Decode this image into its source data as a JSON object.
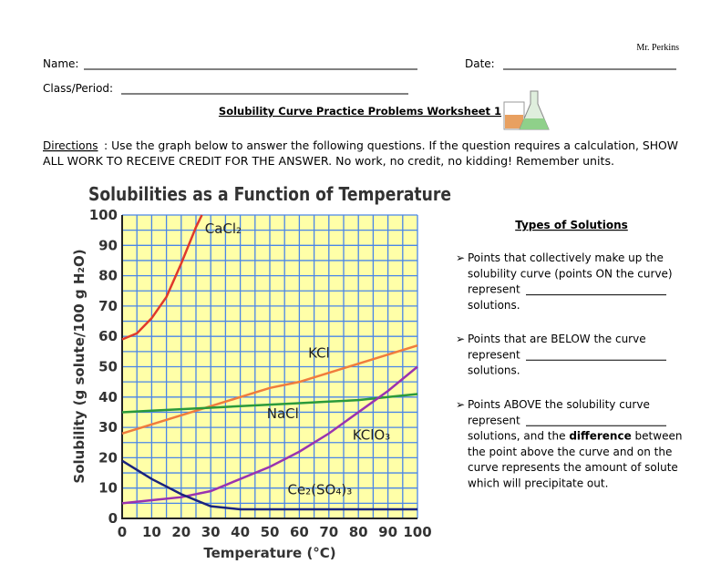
{
  "header": {
    "author": "Mr. Perkins",
    "name_label": "Name:",
    "date_label": "Date:",
    "class_label": "Class/Period:"
  },
  "title": "Solubility Curve Practice Problems Worksheet 1",
  "directions": {
    "label": "Directions",
    "lines": [
      ": Use the graph below to answer the following questions.  If the question requires a calculation, SHOW",
      "ALL WORK TO RECEIVE CREDIT FOR THE ANSWER.  No work, no credit, no kidding!  Remember units."
    ]
  },
  "chart_data": {
    "type": "line",
    "title": "Solubilities as a Function of Temperature",
    "x_label": "Temperature (°C)",
    "y_label": "Solubility (g solute/100 g H₂O)",
    "xlim": [
      0,
      100
    ],
    "ylim": [
      0,
      100
    ],
    "xticks": [
      0,
      10,
      20,
      30,
      40,
      50,
      60,
      70,
      80,
      90,
      100
    ],
    "yticks": [
      0,
      10,
      20,
      30,
      40,
      50,
      60,
      70,
      80,
      90,
      100
    ],
    "grid": true,
    "background": "#ffffa8",
    "grid_color": "#4a86e8",
    "series": [
      {
        "name": "CaCl₂",
        "color": "#e0392b",
        "x": [
          0,
          5,
          10,
          15,
          20,
          25,
          27
        ],
        "values": [
          59,
          61,
          66,
          73,
          84,
          96,
          100
        ]
      },
      {
        "name": "KCl",
        "color": "#f07c3c",
        "x": [
          0,
          10,
          20,
          30,
          40,
          50,
          60,
          70,
          80,
          90,
          100
        ],
        "values": [
          28,
          31,
          34,
          37,
          40,
          43,
          45,
          48,
          51,
          54,
          57
        ]
      },
      {
        "name": "NaCl",
        "color": "#2a9a3a",
        "x": [
          0,
          10,
          20,
          30,
          40,
          50,
          60,
          70,
          80,
          90,
          100
        ],
        "values": [
          35,
          35.5,
          36,
          36.5,
          37,
          37.5,
          38,
          38.5,
          39,
          40,
          41
        ]
      },
      {
        "name": "KClO₃",
        "color": "#9a33b0",
        "x": [
          0,
          10,
          20,
          30,
          40,
          50,
          60,
          70,
          80,
          90,
          100
        ],
        "values": [
          5,
          6,
          7,
          9,
          13,
          17,
          22,
          28,
          35,
          42,
          50
        ]
      },
      {
        "name": "Ce₂(SO₄)₃",
        "color": "#1a237e",
        "x": [
          0,
          10,
          20,
          30,
          40,
          50,
          60,
          70,
          80,
          90,
          100
        ],
        "values": [
          19,
          13,
          8,
          4,
          3,
          3,
          3,
          3,
          3,
          3,
          3
        ]
      }
    ]
  },
  "types": {
    "title": "Types of Solutions",
    "bullets": [
      {
        "lines": [
          "Points that collectively make up the",
          "solubility curve (points ON the curve)",
          "represent",
          "solutions."
        ]
      },
      {
        "lines": [
          "Points that are BELOW the curve",
          "represent",
          "solutions."
        ]
      },
      {
        "lines": [
          "Points ABOVE the solubility curve",
          "represent",
          [
            "solutions, and the ",
            "difference",
            " between"
          ],
          "the point above the curve and on the",
          "curve represents the amount of solute",
          "which will precipitate out."
        ]
      }
    ]
  }
}
